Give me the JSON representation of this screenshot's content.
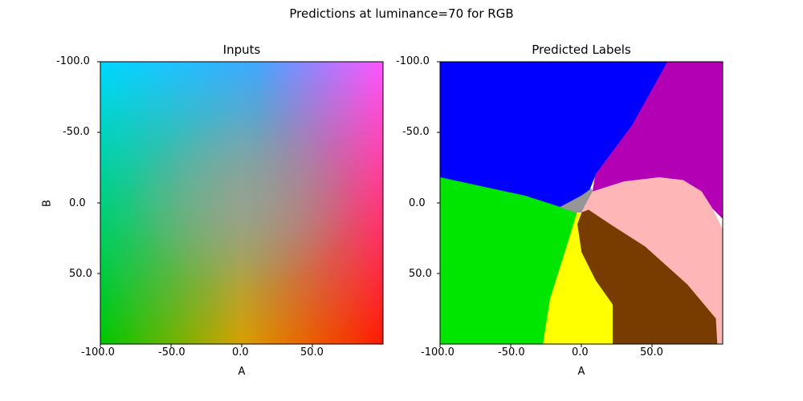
{
  "chart_data": {
    "suptitle": "Predictions at luminance=70 for RGB",
    "type": "heatmap",
    "panels": [
      {
        "title": "Inputs",
        "xlabel": "A",
        "ylabel": "B",
        "xlim": [
          -100,
          100
        ],
        "ylim": [
          -100,
          100
        ],
        "y_inverted": true,
        "xticks": [
          "-100.0",
          "-50.0",
          "0.0",
          "50.0"
        ],
        "yticks": [
          "-100.0",
          "-50.0",
          "0.0",
          "50.0"
        ],
        "content": "continuous color gradient (Lab to RGB) over A and B",
        "corner_colors": {
          "top_left": "#00d8ff",
          "top_right": "#ff55ff",
          "bottom_left": "#00c800",
          "bottom_right": "#ff1a00",
          "center": "#a0a0a0"
        }
      },
      {
        "title": "Predicted Labels",
        "xlabel": "A",
        "ylabel": "",
        "xlim": [
          -100,
          100
        ],
        "ylim": [
          -100,
          100
        ],
        "y_inverted": true,
        "xticks": [
          "-100.0",
          "-50.0",
          "0.0",
          "50.0"
        ],
        "yticks": [
          "-100.0",
          "-50.0",
          "0.0",
          "50.0"
        ],
        "regions": [
          {
            "color": "#0000ff",
            "polygon": [
              [
                -100,
                -100
              ],
              [
                61,
                -100
              ],
              [
                36,
                -55
              ],
              [
                10,
                -20
              ],
              [
                6,
                -10
              ],
              [
                6,
                -7
              ],
              [
                0,
                -5
              ],
              [
                -15,
                3
              ],
              [
                -40,
                -5
              ],
              [
                -100,
                -18
              ]
            ]
          },
          {
            "color": "#b400b4",
            "polygon": [
              [
                61,
                -100
              ],
              [
                100,
                -100
              ],
              [
                100,
                11
              ],
              [
                92,
                3
              ],
              [
                85,
                -8
              ],
              [
                72,
                -16
              ],
              [
                55,
                -18
              ],
              [
                30,
                -15
              ],
              [
                8,
                -8
              ],
              [
                10,
                -20
              ],
              [
                36,
                -55
              ]
            ]
          },
          {
            "color": "#00e600",
            "polygon": [
              [
                -100,
                -18
              ],
              [
                -40,
                -5
              ],
              [
                -15,
                3
              ],
              [
                -3,
                7
              ],
              [
                -10,
                30
              ],
              [
                -22,
                68
              ],
              [
                -27,
                100
              ],
              [
                -100,
                100
              ]
            ]
          },
          {
            "color": "#969696",
            "polygon": [
              [
                7,
                -10
              ],
              [
                8,
                -8
              ],
              [
                0,
                7
              ],
              [
                -3,
                7
              ],
              [
                -15,
                3
              ],
              [
                0,
                -5
              ]
            ]
          },
          {
            "color": "#ffb6b6",
            "polygon": [
              [
                8,
                -8
              ],
              [
                30,
                -15
              ],
              [
                55,
                -18
              ],
              [
                72,
                -16
              ],
              [
                85,
                -8
              ],
              [
                92,
                3
              ],
              [
                97,
                13
              ],
              [
                100,
                19
              ],
              [
                100,
                100
              ],
              [
                96,
                100
              ],
              [
                95,
                82
              ],
              [
                75,
                58
              ],
              [
                45,
                31
              ],
              [
                20,
                15
              ],
              [
                5,
                5
              ],
              [
                0,
                7
              ]
            ]
          },
          {
            "color": "#783c00",
            "polygon": [
              [
                0,
                7
              ],
              [
                5,
                5
              ],
              [
                20,
                15
              ],
              [
                45,
                31
              ],
              [
                75,
                58
              ],
              [
                95,
                82
              ],
              [
                96,
                100
              ],
              [
                22,
                100
              ],
              [
                22,
                72
              ],
              [
                10,
                55
              ],
              [
                0,
                35
              ],
              [
                -3,
                15
              ]
            ]
          },
          {
            "color": "#ffff00",
            "polygon": [
              [
                -3,
                7
              ],
              [
                0,
                7
              ],
              [
                -3,
                15
              ],
              [
                0,
                35
              ],
              [
                10,
                55
              ],
              [
                22,
                72
              ],
              [
                22,
                100
              ],
              [
                -27,
                100
              ],
              [
                -22,
                68
              ],
              [
                -10,
                30
              ]
            ]
          }
        ]
      }
    ]
  }
}
